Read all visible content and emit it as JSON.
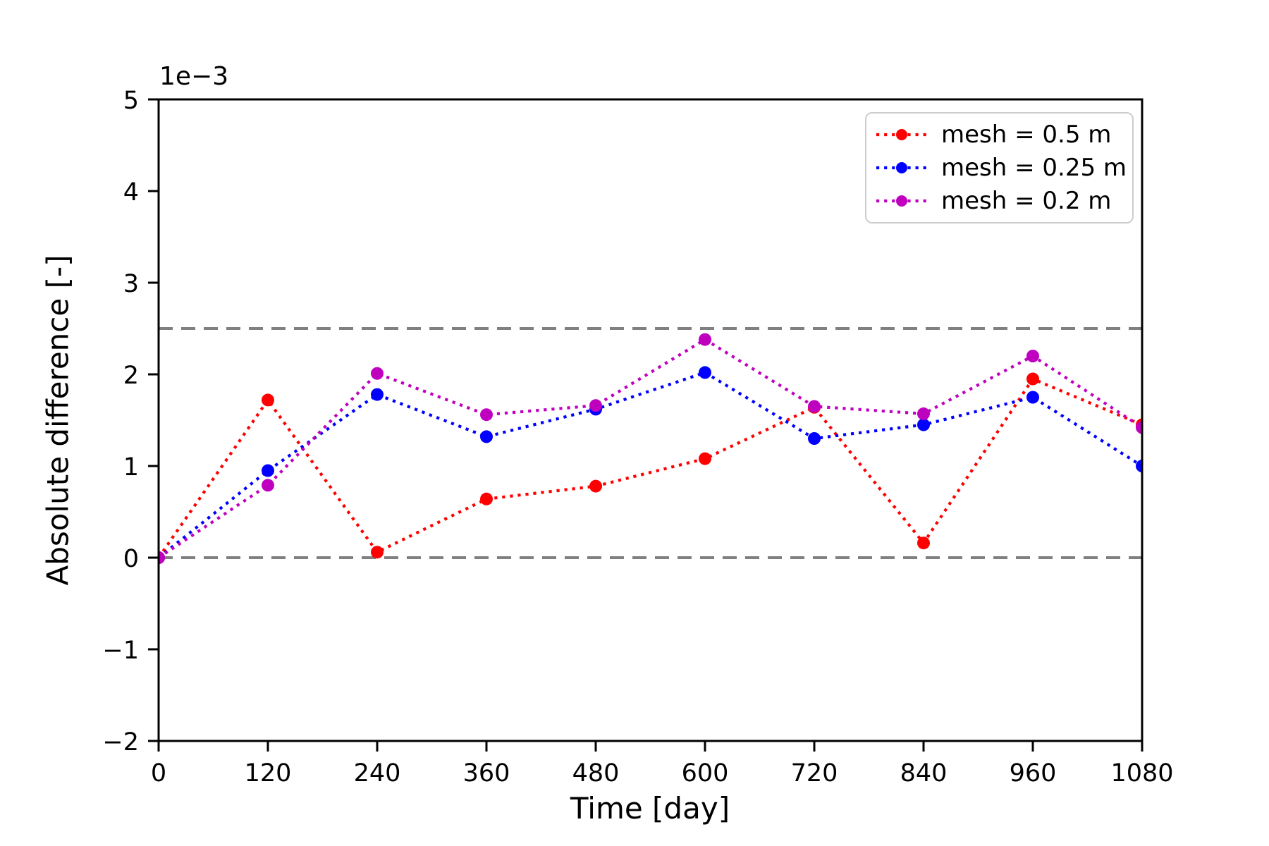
{
  "figure": {
    "background_color": "#ffffff",
    "axes_edge_color": "#000000"
  },
  "chart_data": {
    "type": "line",
    "title": "",
    "xlabel": "Time [day]",
    "ylabel": "Absolute difference [-]",
    "y_offset_label": "1e−3",
    "x": [
      0,
      120,
      240,
      360,
      480,
      600,
      720,
      840,
      960,
      1080
    ],
    "series": [
      {
        "name": "mesh = 0.5 m",
        "color": "#ff0000",
        "linestyle": "dotted",
        "marker": "circle",
        "values": [
          0.0,
          1.72,
          0.06,
          0.64,
          0.78,
          1.08,
          1.64,
          0.16,
          1.95,
          1.45
        ]
      },
      {
        "name": "mesh = 0.25 m",
        "color": "#0000ff",
        "linestyle": "dotted",
        "marker": "circle",
        "values": [
          0.0,
          0.95,
          1.78,
          1.32,
          1.62,
          2.02,
          1.3,
          1.45,
          1.75,
          1.0
        ]
      },
      {
        "name": "mesh = 0.2 m",
        "color": "#bf00bf",
        "linestyle": "dotted",
        "marker": "circle",
        "values": [
          0.0,
          0.79,
          2.01,
          1.56,
          1.66,
          2.38,
          1.65,
          1.57,
          2.2,
          1.42
        ]
      }
    ],
    "reference_lines": [
      {
        "y": 0.0,
        "style": "dashed",
        "color": "#808080"
      },
      {
        "y": 2.5,
        "style": "dashed",
        "color": "#808080"
      }
    ],
    "xlim": [
      0,
      1080
    ],
    "ylim": [
      -2,
      5
    ],
    "xticks": {
      "values": [
        0,
        120,
        240,
        360,
        480,
        600,
        720,
        840,
        960,
        1080
      ],
      "labels": [
        "0",
        "120",
        "240",
        "360",
        "480",
        "600",
        "720",
        "840",
        "960",
        "1080"
      ]
    },
    "yticks": {
      "values": [
        -2,
        -1,
        0,
        1,
        2,
        3,
        4,
        5
      ],
      "labels": [
        "−2",
        "−1",
        "0",
        "1",
        "2",
        "3",
        "4",
        "5"
      ]
    },
    "grid": false,
    "legend_position": "upper right"
  }
}
